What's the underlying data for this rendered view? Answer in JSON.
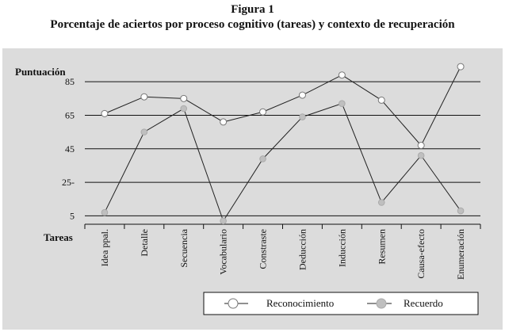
{
  "figure": {
    "number": "Figura 1",
    "title": "Porcentaje de aciertos por proceso cognitivo (tareas) y contexto de recuperación"
  },
  "chart_data": {
    "type": "line",
    "ylabel": "Puntuación",
    "xlabel": "Tareas",
    "ylim": [
      0,
      95
    ],
    "yticks": [
      {
        "value": 85,
        "label": "85"
      },
      {
        "value": 65,
        "label": "65"
      },
      {
        "value": 45,
        "label": "45"
      },
      {
        "value": 25,
        "label": "25-"
      },
      {
        "value": 5,
        "label": "5"
      }
    ],
    "grid": true,
    "legend_position": "bottom-right",
    "categories": [
      "Idea ppal.",
      "Detalle",
      "Secuencia",
      "Vocabulario",
      "Constraste",
      "Deducción",
      "Inducción",
      "Resumen",
      "Causa-efecto",
      "Enumeración"
    ],
    "series": [
      {
        "name": "Reconocimiento",
        "marker": "open-circle",
        "color": "#ffffff",
        "values": [
          66,
          76,
          75,
          61,
          67,
          77,
          89,
          74,
          47,
          94
        ]
      },
      {
        "name": "Recuerdo",
        "marker": "filled-circle",
        "color": "#bfbfbf",
        "values": [
          7,
          55,
          69,
          2,
          39,
          64,
          72,
          13,
          41,
          8
        ]
      }
    ]
  }
}
